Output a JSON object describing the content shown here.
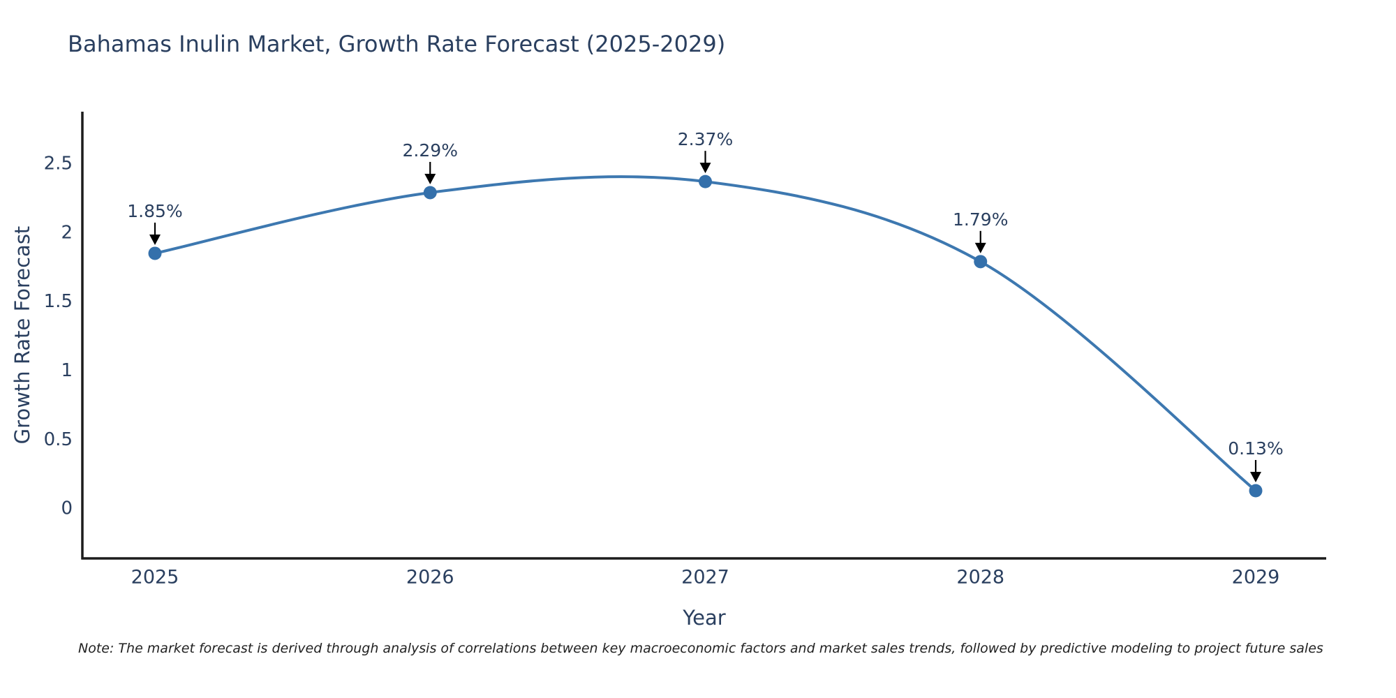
{
  "title": "Bahamas Inulin Market, Growth Rate Forecast (2025-2029)",
  "note": "Note: The market forecast is derived through analysis of correlations between key macroeconomic factors and market sales trends, followed by predictive modeling to project future sales",
  "chart_data": {
    "type": "line",
    "title": "Bahamas Inulin Market, Growth Rate Forecast (2025-2029)",
    "xlabel": "Year",
    "ylabel": "Growth Rate Forecast",
    "x": [
      2025,
      2026,
      2027,
      2028,
      2029
    ],
    "values": [
      1.85,
      2.29,
      2.37,
      1.79,
      0.13
    ],
    "point_labels": [
      "1.85%",
      "2.29%",
      "2.37%",
      "1.79%",
      "0.13%"
    ],
    "x_tick_labels": [
      "2025",
      "2026",
      "2027",
      "2028",
      "2029"
    ],
    "y_ticks": [
      0,
      0.5,
      1,
      1.5,
      2,
      2.5
    ],
    "y_tick_labels": [
      "0",
      "0.5",
      "1",
      "1.5",
      "2",
      "2.5"
    ],
    "ylim": [
      -0.36,
      2.88
    ],
    "line_shape": "spline",
    "grid": false,
    "legend_position": "none",
    "colors": {
      "line": "#3d78b0",
      "marker": "#3470ab",
      "axis": "#1c1c1c",
      "text": "#2a3f5f",
      "annotation_text": "#2a3f5f",
      "annotation_arrow": "#000000",
      "background": "#ffffff"
    }
  }
}
